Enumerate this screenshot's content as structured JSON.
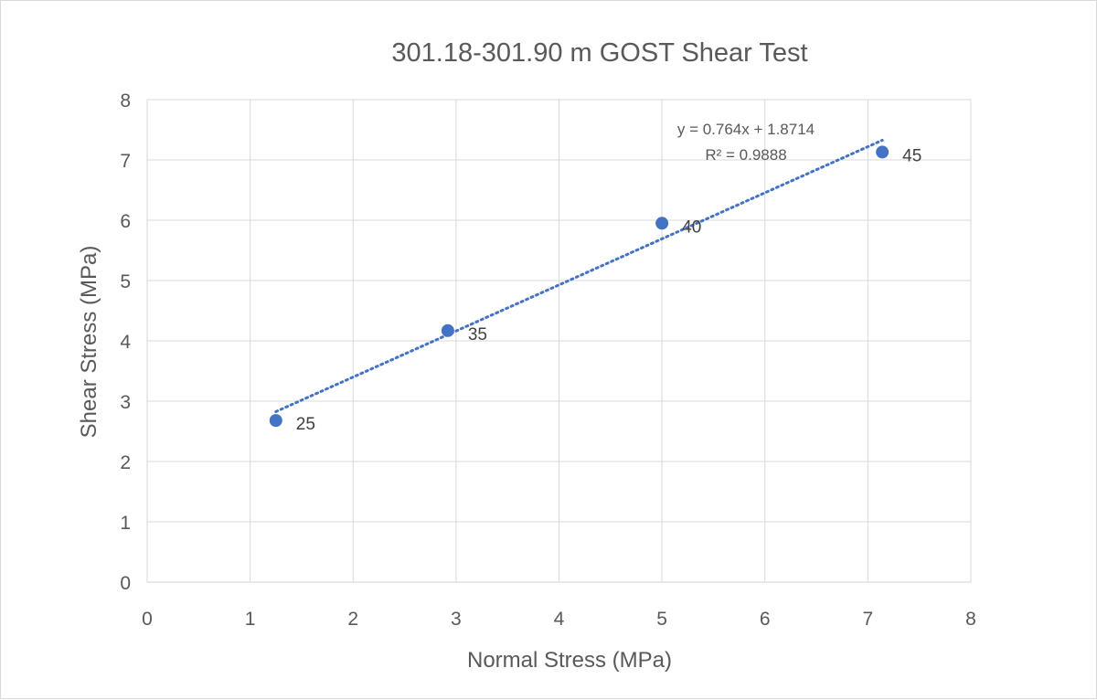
{
  "chart_data": {
    "type": "scatter",
    "title": "301.18-301.90 m GOST Shear Test",
    "xlabel": "Normal Stress (MPa)",
    "ylabel": "Shear Stress (MPa)",
    "xlim": [
      0,
      8
    ],
    "ylim": [
      0,
      8
    ],
    "xticks": [
      "0",
      "1",
      "2",
      "3",
      "4",
      "5",
      "6",
      "7",
      "8"
    ],
    "yticks": [
      "0",
      "1",
      "2",
      "3",
      "4",
      "5",
      "6",
      "7",
      "8"
    ],
    "grid": true,
    "series": [
      {
        "x": [
          1.25,
          2.92,
          5.0,
          7.14
        ],
        "y": [
          2.68,
          4.17,
          5.95,
          7.13
        ],
        "labels": [
          "25",
          "35",
          "40",
          "45"
        ],
        "color": "#4472c4"
      }
    ],
    "trendline": {
      "slope": 0.764,
      "intercept": 1.8714,
      "x_range": [
        1.25,
        7.14
      ],
      "style": "dotted",
      "color": "#4472c4",
      "equation": "y = 0.764x + 1.8714",
      "r_squared": "R² = 0.9888"
    }
  }
}
